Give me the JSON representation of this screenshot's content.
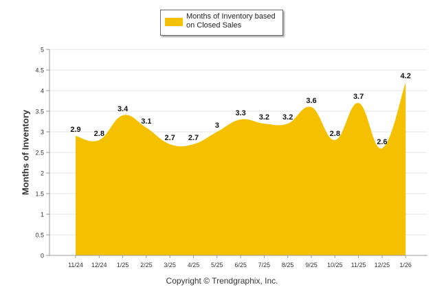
{
  "chart_data": {
    "type": "area",
    "title": "",
    "xlabel": "",
    "ylabel": "Months of Inventory",
    "ylim": [
      0,
      5
    ],
    "yticks": [
      "0",
      "0.5",
      "1",
      "1.5",
      "2",
      "2.5",
      "3",
      "3.5",
      "4",
      "4.5",
      "5"
    ],
    "yticks_values": [
      0,
      0.5,
      1,
      1.5,
      2,
      2.5,
      3,
      3.5,
      4,
      4.5,
      5
    ],
    "grid": true,
    "legend_position": "top-center",
    "categories": [
      "11/24",
      "12/24",
      "1/25",
      "2/25",
      "3/25",
      "4/25",
      "5/25",
      "6/25",
      "7/25",
      "8/25",
      "9/25",
      "10/25",
      "11/25",
      "12/25",
      "1/26"
    ],
    "series": [
      {
        "name": "Months of Inventory based on Closed Sales",
        "color": "#f5c000",
        "values": [
          2.9,
          2.8,
          3.4,
          3.1,
          2.7,
          2.7,
          3,
          3.3,
          3.2,
          3.2,
          3.6,
          2.8,
          3.7,
          2.6,
          4.2
        ],
        "labels": [
          "2.9",
          "2.8",
          "3.4",
          "3.1",
          "2.7",
          "2.7",
          "3",
          "3.3",
          "3.2",
          "3.2",
          "3.6",
          "2.8",
          "3.7",
          "2.6",
          "4.2"
        ]
      }
    ]
  },
  "legend": {
    "label_line1": "Months of Inventory based",
    "label_line2": "on Closed Sales"
  },
  "footer": {
    "copyright": "Copyright © Trendgraphix, Inc."
  }
}
